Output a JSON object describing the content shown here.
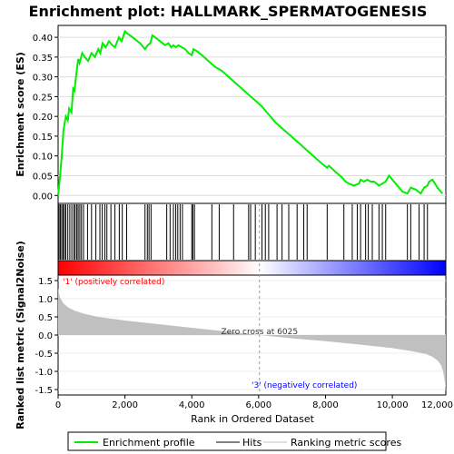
{
  "chart_data": {
    "type": "line",
    "title": "Enrichment plot: HALLMARK_SPERMATOGENESIS",
    "xlabel": "Rank in Ordered Dataset",
    "xlim": [
      0,
      11600
    ],
    "x_ticks": [
      "0",
      "2,000",
      "4,000",
      "6,000",
      "8,000",
      "10,000",
      "12,000"
    ],
    "x_tick_values": [
      0,
      2000,
      4000,
      6000,
      8000,
      10000,
      12000
    ],
    "es_panel": {
      "ylabel": "Enrichment score (ES)",
      "ylim": [
        -0.02,
        0.43
      ],
      "y_ticks": [
        "0.00",
        "0.05",
        "0.10",
        "0.15",
        "0.20",
        "0.25",
        "0.30",
        "0.35",
        "0.40"
      ],
      "y_tick_values": [
        0.0,
        0.05,
        0.1,
        0.15,
        0.2,
        0.25,
        0.3,
        0.35,
        0.4
      ],
      "grid": true,
      "series": [
        {
          "name": "Enrichment profile",
          "color": "#00ee00",
          "x": [
            0,
            60,
            110,
            160,
            230,
            290,
            330,
            400,
            450,
            490,
            550,
            600,
            640,
            720,
            800,
            900,
            1000,
            1100,
            1200,
            1260,
            1330,
            1420,
            1520,
            1620,
            1700,
            1820,
            1900,
            2000,
            2060,
            2150,
            2300,
            2450,
            2600,
            2680,
            2760,
            2820,
            2900,
            3050,
            3200,
            3300,
            3380,
            3450,
            3520,
            3600,
            3700,
            3800,
            3900,
            4000,
            4050,
            4150,
            4300,
            4500,
            4700,
            4900,
            5100,
            5300,
            5500,
            5700,
            5900,
            6100,
            6300,
            6500,
            6700,
            6900,
            7100,
            7300,
            7500,
            7700,
            7900,
            8050,
            8100,
            8300,
            8500,
            8600,
            8700,
            8850,
            9000,
            9050,
            9150,
            9250,
            9350,
            9450,
            9600,
            9700,
            9800,
            9900,
            10000,
            10100,
            10200,
            10300,
            10450,
            10550,
            10700,
            10850,
            10950,
            11050,
            11100,
            11200,
            11350,
            11500
          ],
          "y": [
            0.0,
            0.05,
            0.1,
            0.165,
            0.2,
            0.19,
            0.22,
            0.21,
            0.27,
            0.265,
            0.31,
            0.345,
            0.335,
            0.36,
            0.35,
            0.34,
            0.36,
            0.35,
            0.37,
            0.36,
            0.385,
            0.375,
            0.39,
            0.38,
            0.375,
            0.4,
            0.39,
            0.415,
            0.41,
            0.405,
            0.395,
            0.385,
            0.37,
            0.38,
            0.385,
            0.405,
            0.4,
            0.39,
            0.38,
            0.385,
            0.375,
            0.38,
            0.375,
            0.38,
            0.375,
            0.37,
            0.36,
            0.355,
            0.37,
            0.365,
            0.355,
            0.34,
            0.325,
            0.315,
            0.3,
            0.285,
            0.27,
            0.255,
            0.24,
            0.225,
            0.205,
            0.185,
            0.17,
            0.155,
            0.14,
            0.125,
            0.11,
            0.095,
            0.08,
            0.07,
            0.075,
            0.06,
            0.045,
            0.035,
            0.03,
            0.025,
            0.03,
            0.04,
            0.035,
            0.04,
            0.035,
            0.035,
            0.025,
            0.03,
            0.035,
            0.05,
            0.04,
            0.03,
            0.02,
            0.01,
            0.005,
            0.02,
            0.015,
            0.005,
            0.02,
            0.025,
            0.035,
            0.04,
            0.02,
            0.005
          ]
        }
      ]
    },
    "hits_panel": {
      "hit_positions": [
        30,
        70,
        110,
        150,
        190,
        230,
        290,
        350,
        410,
        470,
        510,
        560,
        600,
        650,
        700,
        760,
        880,
        1000,
        1130,
        1250,
        1320,
        1400,
        1460,
        1580,
        1700,
        1830,
        1920,
        2050,
        2600,
        2670,
        2720,
        2780,
        3250,
        3350,
        3450,
        3520,
        3580,
        3650,
        3720,
        4000,
        4030,
        4080,
        4600,
        4820,
        5250,
        5700,
        5760,
        5900,
        6100,
        6200,
        6300,
        6550,
        6700,
        6900,
        7150,
        7350,
        7450,
        8050,
        8550,
        8800,
        8950,
        9050,
        9200,
        9280,
        9400,
        9600,
        9700,
        9800,
        10450,
        10550,
        10800,
        10950,
        11050
      ],
      "gradient_colors": [
        "#ff0000",
        "#ffffff",
        "#0000ff"
      ]
    },
    "metric_panel": {
      "ylabel": "Ranked list metric (Signal2Noise)",
      "ylim": [
        -1.65,
        1.65
      ],
      "y_ticks": [
        "-1.5",
        "-1.0",
        "-0.5",
        "0.0",
        "0.5",
        "1.0",
        "1.5"
      ],
      "y_tick_values": [
        -1.5,
        -1.0,
        -0.5,
        0.0,
        0.5,
        1.0,
        1.5
      ],
      "x": [
        0,
        50,
        150,
        300,
        500,
        800,
        1200,
        2000,
        3000,
        4000,
        5000,
        6025,
        7000,
        8000,
        9000,
        10000,
        10500,
        11000,
        11200,
        11350,
        11450,
        11520,
        11570,
        11600
      ],
      "y": [
        1.3,
        1.05,
        0.88,
        0.76,
        0.67,
        0.58,
        0.5,
        0.4,
        0.3,
        0.2,
        0.1,
        0.0,
        -0.09,
        -0.17,
        -0.26,
        -0.36,
        -0.43,
        -0.52,
        -0.6,
        -0.7,
        -0.82,
        -1.0,
        -1.3,
        -1.5
      ],
      "fill_color": "#c0c0c0",
      "zero_cross_label": "Zero cross at 6025",
      "zero_cross_x": 6025,
      "positive_label": "'1' (positively correlated)",
      "negative_label": "'3' (negatively correlated)",
      "positive_color": "#ff0000",
      "negative_color": "#0000ff"
    },
    "legend": {
      "placement": "bottom",
      "entries": [
        {
          "name": "Enrichment profile",
          "color": "#00ee00"
        },
        {
          "name": "Hits",
          "color": "#000000"
        },
        {
          "name": "Ranking metric scores",
          "color": "#c0c0c0"
        }
      ]
    }
  }
}
